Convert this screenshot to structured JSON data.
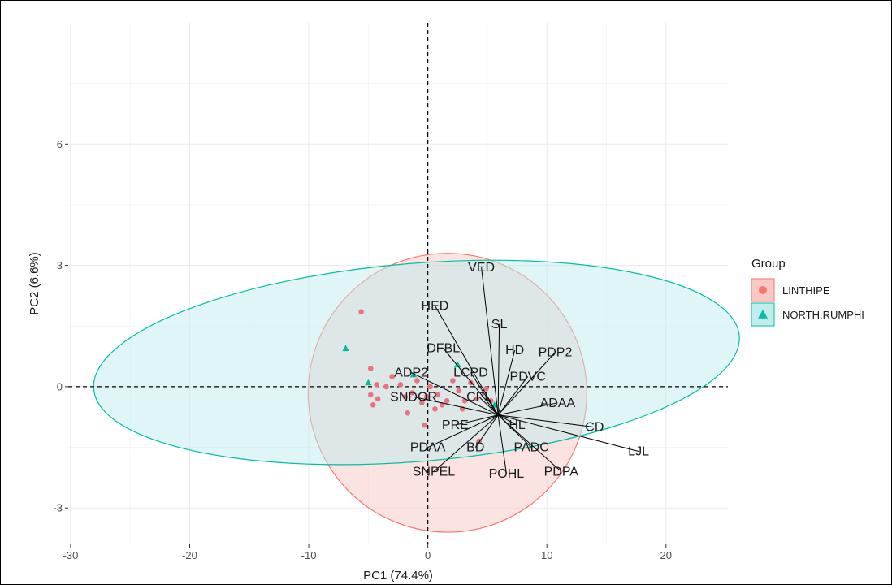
{
  "chart_data": {
    "type": "scatter",
    "xlabel": "PC1 (74.4%)",
    "ylabel": "PC2 (6.6%)",
    "xlim": [
      -30.2,
      25.2
    ],
    "ylim": [
      -3.9,
      9.0
    ],
    "x_ticks": [
      -30,
      -20,
      -10,
      0,
      10,
      20
    ],
    "y_ticks": [
      -3,
      0,
      3,
      6
    ],
    "grid": true,
    "reference_lines": {
      "x": 0,
      "y": 0,
      "style": "dashed"
    },
    "legend": {
      "title": "Group",
      "placement": "right",
      "entries": [
        {
          "label": "LINTHIPE",
          "marker": "circle",
          "color": "#F8766D",
          "fill": "#F8C8C4"
        },
        {
          "label": "NORTH.RUMPHI",
          "marker": "triangle",
          "color": "#00BFA4",
          "fill": "#C2ECEE"
        }
      ]
    },
    "series": [
      {
        "name": "LINTHIPE",
        "marker": "circle",
        "color": "#E8737F",
        "points": [
          [
            -5.6,
            1.85
          ],
          [
            -4.8,
            0.45
          ],
          [
            -4.3,
            0.05
          ],
          [
            -4.8,
            -0.2
          ],
          [
            -4.6,
            -0.45
          ],
          [
            -4.2,
            -0.3
          ],
          [
            -3.5,
            0.0
          ],
          [
            -3.0,
            0.25
          ],
          [
            -2.3,
            0.05
          ],
          [
            -1.9,
            -0.25
          ],
          [
            -1.7,
            -0.65
          ],
          [
            -1.3,
            -0.15
          ],
          [
            -0.9,
            0.15
          ],
          [
            -0.5,
            -0.4
          ],
          [
            -0.3,
            -0.95
          ],
          [
            0.2,
            0.0
          ],
          [
            0.8,
            -0.2
          ],
          [
            1.2,
            -0.45
          ],
          [
            1.6,
            -0.35
          ],
          [
            2.1,
            0.15
          ],
          [
            2.6,
            -0.1
          ],
          [
            3.1,
            -0.35
          ],
          [
            2.9,
            -0.55
          ],
          [
            3.6,
            0.1
          ],
          [
            4.1,
            -0.3
          ],
          [
            4.3,
            -1.35
          ],
          [
            4.9,
            -0.05
          ],
          [
            5.3,
            -0.35
          ],
          [
            0.6,
            -0.55
          ],
          [
            -0.1,
            -0.25
          ]
        ]
      },
      {
        "name": "NORTH.RUMPHI",
        "marker": "triangle",
        "color": "#00BF9A",
        "points": [
          [
            -6.9,
            0.95
          ],
          [
            -5.0,
            0.1
          ],
          [
            -1.2,
            0.3
          ],
          [
            2.5,
            0.55
          ],
          [
            5.6,
            -0.45
          ]
        ]
      }
    ],
    "ellipses": [
      {
        "group": "LINTHIPE",
        "center": [
          1.65,
          -0.15
        ],
        "radius_x": 11.7,
        "radius_y": 3.45,
        "rotation_deg": 0
      },
      {
        "group": "NORTH.RUMPHI",
        "center": [
          -0.95,
          0.6
        ],
        "radius_x": 27.2,
        "radius_y": 2.45,
        "rotation_deg": -4.7
      }
    ],
    "loading_labels": [
      {
        "label": "VED",
        "pos": [
          4.5,
          2.95
        ]
      },
      {
        "label": "HED",
        "pos": [
          0.6,
          2.0
        ]
      },
      {
        "label": "SL",
        "pos": [
          6.0,
          1.55
        ]
      },
      {
        "label": "DFBL",
        "pos": [
          1.3,
          0.95
        ]
      },
      {
        "label": "HD",
        "pos": [
          7.3,
          0.9
        ]
      },
      {
        "label": "PDP2",
        "pos": [
          10.7,
          0.85
        ]
      },
      {
        "label": "ADP2",
        "pos": [
          -1.4,
          0.35
        ]
      },
      {
        "label": "LCPD",
        "pos": [
          3.6,
          0.35
        ]
      },
      {
        "label": "PDVC",
        "pos": [
          8.4,
          0.25
        ]
      },
      {
        "label": "SNDOR",
        "pos": [
          -1.2,
          -0.25
        ]
      },
      {
        "label": "CPL",
        "pos": [
          4.3,
          -0.25
        ]
      },
      {
        "label": "ADAA",
        "pos": [
          10.9,
          -0.4
        ]
      },
      {
        "label": "HL",
        "pos": [
          7.5,
          -0.95
        ]
      },
      {
        "label": "PRE",
        "pos": [
          2.3,
          -0.95
        ]
      },
      {
        "label": "CD",
        "pos": [
          14.0,
          -1.0
        ]
      },
      {
        "label": "PDAA",
        "pos": [
          0.0,
          -1.5
        ]
      },
      {
        "label": "BD",
        "pos": [
          4.0,
          -1.5
        ]
      },
      {
        "label": "PADC",
        "pos": [
          8.7,
          -1.5
        ]
      },
      {
        "label": "LJL",
        "pos": [
          17.7,
          -1.6
        ]
      },
      {
        "label": "SNPEL",
        "pos": [
          0.5,
          -2.1
        ]
      },
      {
        "label": "POHL",
        "pos": [
          6.6,
          -2.15
        ]
      },
      {
        "label": "PDPA",
        "pos": [
          11.2,
          -2.1
        ]
      }
    ]
  }
}
